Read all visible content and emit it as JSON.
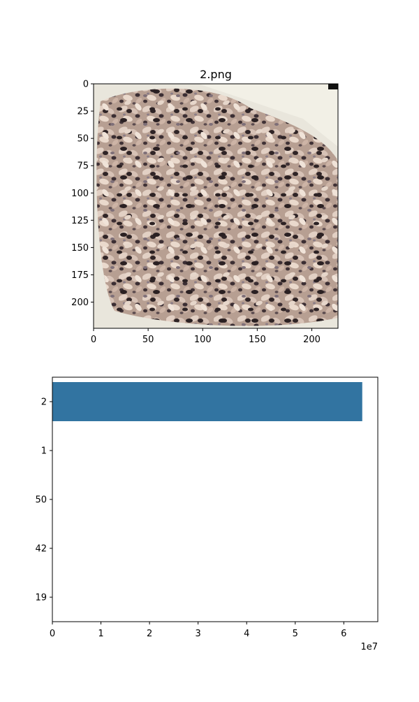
{
  "chart_data": [
    {
      "type": "image",
      "title": "2.png",
      "xlim": [
        0,
        224
      ],
      "ylim": [
        224,
        0
      ],
      "xticks": [
        0,
        50,
        100,
        150,
        200
      ],
      "yticks": [
        0,
        25,
        50,
        75,
        100,
        125,
        150,
        175,
        200
      ],
      "image_description": "photo of mixed multigrain rice on a white plate"
    },
    {
      "type": "bar",
      "orientation": "horizontal",
      "categories": [
        "2",
        "1",
        "50",
        "42",
        "19"
      ],
      "values": [
        63800000,
        0,
        0,
        0,
        0
      ],
      "xlim": [
        0,
        67000000
      ],
      "xticks": [
        0,
        1,
        2,
        3,
        4,
        5,
        6
      ],
      "x_offset_label": "1e7",
      "color": "#3274a1"
    }
  ]
}
